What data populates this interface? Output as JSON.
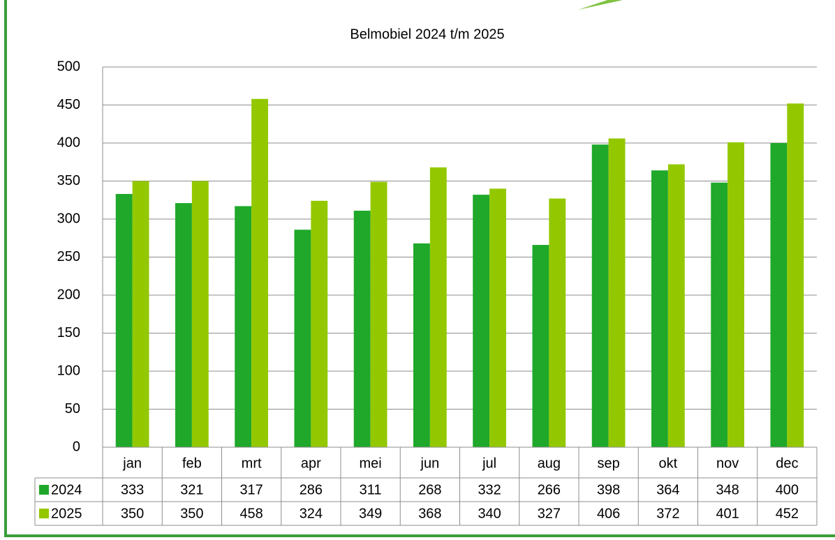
{
  "chart_data": {
    "type": "bar",
    "title": "Belmobiel 2024 t/m 2025",
    "categories": [
      "jan",
      "feb",
      "mrt",
      "apr",
      "mei",
      "jun",
      "jul",
      "aug",
      "sep",
      "okt",
      "nov",
      "dec"
    ],
    "series": [
      {
        "name": "2024",
        "color": "#1fa82a",
        "values": [
          333,
          321,
          317,
          286,
          311,
          268,
          332,
          266,
          398,
          364,
          348,
          400
        ]
      },
      {
        "name": "2025",
        "color": "#93c800",
        "values": [
          350,
          350,
          458,
          324,
          349,
          368,
          340,
          327,
          406,
          372,
          401,
          452
        ]
      }
    ],
    "ylim": [
      0,
      500
    ],
    "yticks": [
      0,
      50,
      100,
      150,
      200,
      250,
      300,
      350,
      400,
      450,
      500
    ],
    "grid": true
  }
}
